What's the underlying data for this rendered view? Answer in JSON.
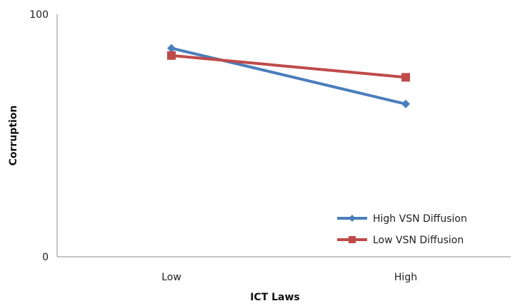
{
  "chart_data": {
    "type": "line",
    "title": "",
    "xlabel": "ICT Laws",
    "ylabel": "Corruption",
    "categories": [
      "Low",
      "High"
    ],
    "ylim": [
      0,
      100
    ],
    "yticks": [
      "0",
      "100"
    ],
    "grid": false,
    "legend_position": "bottom-right",
    "series": [
      {
        "name": "High VSN Diffusion",
        "values": [
          86,
          63
        ],
        "color": "#4A7EBB",
        "marker": "diamond"
      },
      {
        "name": "Low VSN Diffusion",
        "values": [
          83,
          74
        ],
        "color": "#BE4B48",
        "marker": "square"
      }
    ]
  }
}
